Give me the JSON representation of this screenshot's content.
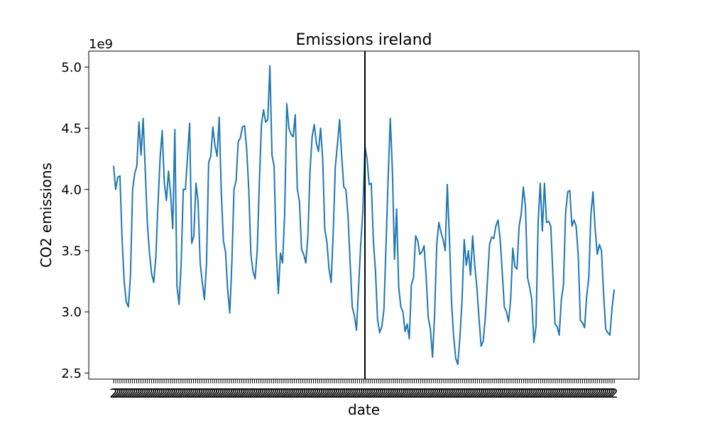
{
  "chart_data": {
    "type": "line",
    "title": "Emissions ireland",
    "xlabel": "date",
    "ylabel": "CO2 emissions",
    "y_offset_label": "1e9",
    "ylim": [
      2.45,
      5.13
    ],
    "yticks": [
      2.5,
      3.0,
      3.5,
      4.0,
      4.5,
      5.0
    ],
    "ytick_labels": [
      "2.5",
      "3.0",
      "3.5",
      "4.0",
      "4.5",
      "5.0"
    ],
    "grid": false,
    "series": [
      {
        "color": "#1f77b4",
        "values": [
          4.19,
          4.0,
          4.1,
          4.11,
          3.6,
          3.25,
          3.08,
          3.04,
          3.3,
          4.0,
          4.13,
          4.19,
          4.55,
          4.28,
          4.58,
          4.15,
          3.72,
          3.48,
          3.31,
          3.24,
          3.45,
          3.87,
          4.25,
          4.48,
          4.06,
          3.91,
          4.15,
          3.96,
          3.68,
          4.49,
          3.21,
          3.06,
          3.4,
          4.0,
          4.0,
          4.27,
          4.54,
          3.56,
          3.62,
          4.05,
          3.9,
          3.4,
          3.24,
          3.1,
          3.4,
          4.22,
          4.27,
          4.51,
          4.36,
          4.27,
          4.59,
          3.97,
          3.58,
          3.49,
          3.18,
          2.99,
          3.4,
          4.0,
          4.07,
          4.39,
          4.42,
          4.51,
          4.52,
          4.33,
          4.0,
          3.47,
          3.33,
          3.27,
          3.5,
          4.05,
          4.53,
          4.65,
          4.55,
          4.57,
          5.01,
          4.28,
          4.19,
          3.5,
          3.15,
          3.48,
          3.4,
          3.8,
          4.7,
          4.5,
          4.45,
          4.43,
          4.61,
          4.0,
          3.9,
          3.51,
          3.47,
          3.4,
          3.62,
          4.15,
          4.43,
          4.53,
          4.38,
          4.31,
          4.5,
          4.25,
          3.67,
          3.57,
          3.35,
          3.24,
          3.65,
          4.19,
          4.37,
          4.57,
          4.27,
          4.02,
          4.0,
          3.78,
          3.4,
          3.04,
          2.97,
          2.85,
          3.2,
          3.55,
          3.82,
          4.35,
          4.25,
          4.04,
          4.05,
          3.58,
          3.33,
          2.93,
          2.83,
          2.88,
          3.02,
          3.55,
          4.1,
          4.58,
          4.16,
          3.43,
          3.84,
          3.2,
          3.04,
          3.0,
          2.84,
          2.9,
          2.78,
          3.22,
          3.28,
          3.62,
          3.58,
          3.47,
          3.49,
          3.54,
          3.28,
          2.95,
          2.86,
          2.63,
          2.98,
          3.55,
          3.73,
          3.65,
          3.59,
          3.5,
          4.04,
          3.6,
          3.08,
          2.8,
          2.62,
          2.57,
          2.8,
          3.1,
          3.59,
          3.38,
          3.5,
          3.3,
          3.62,
          3.38,
          3.2,
          2.95,
          2.72,
          2.76,
          2.95,
          3.25,
          3.55,
          3.61,
          3.6,
          3.7,
          3.75,
          3.6,
          3.33,
          3.04,
          3.0,
          2.92,
          3.1,
          3.52,
          3.37,
          3.35,
          3.7,
          3.8,
          4.02,
          3.86,
          3.28,
          3.2,
          3.1,
          2.75,
          2.88,
          3.73,
          4.05,
          3.66,
          4.05,
          3.73,
          3.74,
          3.7,
          3.3,
          2.9,
          2.88,
          2.81,
          3.1,
          3.22,
          3.8,
          3.98,
          3.99,
          3.7,
          3.75,
          3.7,
          3.46,
          2.93,
          2.91,
          2.87,
          3.13,
          3.28,
          3.8,
          3.98,
          3.68,
          3.47,
          3.55,
          3.5,
          3.15,
          2.86,
          2.83,
          2.81,
          3.03,
          3.18
        ]
      }
    ],
    "vline_at_index": 119,
    "vline_color": "#000000",
    "x_tick_count": 239,
    "x_tick_label_glyph": "2"
  }
}
